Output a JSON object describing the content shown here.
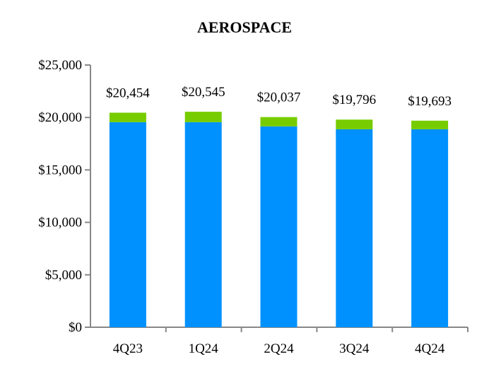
{
  "chart_data": {
    "type": "bar",
    "stacked": true,
    "title": "AEROSPACE",
    "categories": [
      "4Q23",
      "1Q24",
      "2Q24",
      "3Q24",
      "4Q24"
    ],
    "totals": [
      20454,
      20545,
      20037,
      19796,
      19693
    ],
    "total_labels": [
      "$20,454",
      "$20,545",
      "$20,037",
      "$19,796",
      "$19,693"
    ],
    "series": [
      {
        "color": "#0091ff",
        "values": [
          19550,
          19550,
          19150,
          18870,
          18870
        ]
      },
      {
        "color": "#77cc00",
        "values": [
          904,
          995,
          887,
          926,
          823
        ]
      }
    ],
    "ylim": [
      0,
      25000
    ],
    "yticks": [
      0,
      5000,
      10000,
      15000,
      20000,
      25000
    ],
    "ytick_labels": [
      "$0",
      "$5,000",
      "$10,000",
      "$15,000",
      "$20,000",
      "$25,000"
    ],
    "grid": false,
    "xlabel": "",
    "ylabel": ""
  }
}
